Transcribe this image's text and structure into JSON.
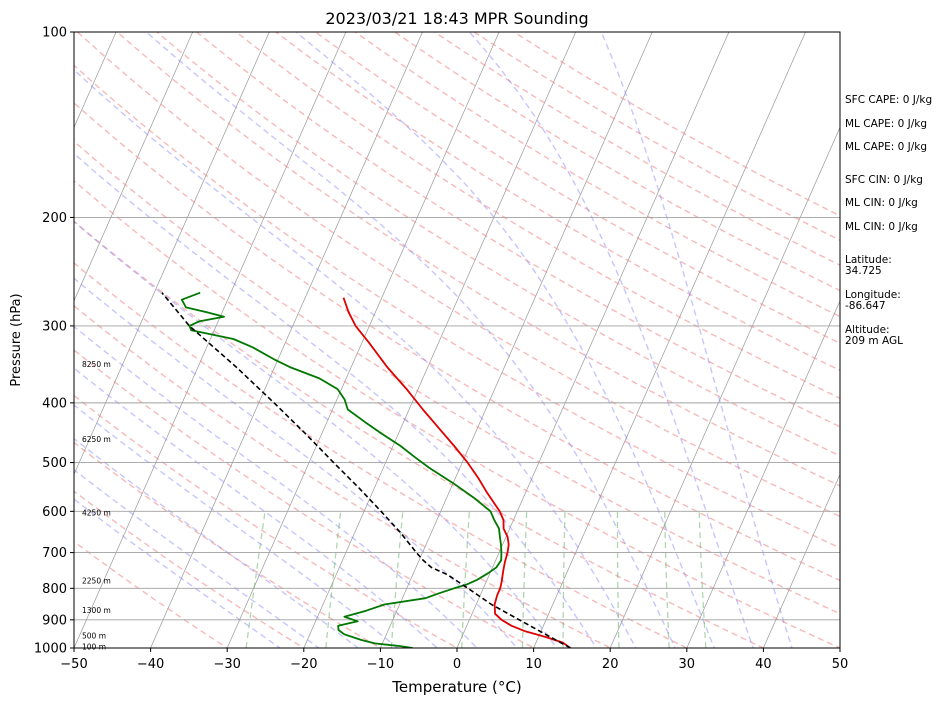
{
  "chart_data": {
    "type": "skew-t",
    "title": "2023/03/21 18:43 MPR Sounding",
    "xlabel": "Temperature (°C)",
    "ylabel": "Pressure (hPa)",
    "xlim": [
      -50,
      50
    ],
    "ylim": [
      1000,
      100
    ],
    "x_ticks": [
      "−50",
      "−40",
      "−30",
      "−20",
      "−10",
      "0",
      "10",
      "20",
      "30",
      "40",
      "50"
    ],
    "y_ticks": [
      {
        "p": 100,
        "label": "100"
      },
      {
        "p": 200,
        "label": "200"
      },
      {
        "p": 300,
        "label": "300"
      },
      {
        "p": 400,
        "label": "400"
      },
      {
        "p": 500,
        "label": "500"
      },
      {
        "p": 600,
        "label": "600"
      },
      {
        "p": 700,
        "label": "700"
      },
      {
        "p": 800,
        "label": "800"
      },
      {
        "p": 900,
        "label": "900"
      },
      {
        "p": 1000,
        "label": "1000"
      }
    ],
    "height_labels": [
      {
        "p": 994,
        "label": "100 m"
      },
      {
        "p": 955,
        "label": "500 m"
      },
      {
        "p": 867,
        "label": "1300 m"
      },
      {
        "p": 777,
        "label": "2250 m"
      },
      {
        "p": 603,
        "label": "4250 m"
      },
      {
        "p": 458,
        "label": "6250 m"
      },
      {
        "p": 346,
        "label": "8250 m"
      }
    ],
    "series": [
      {
        "name": "Temperature",
        "color": "#e00000",
        "points": [
          [
            1000,
            14.8
          ],
          [
            980,
            13.5
          ],
          [
            960,
            11.0
          ],
          [
            940,
            8.0
          ],
          [
            920,
            5.8
          ],
          [
            900,
            4.2
          ],
          [
            880,
            3.0
          ],
          [
            850,
            2.4
          ],
          [
            820,
            2.2
          ],
          [
            800,
            2.2
          ],
          [
            780,
            2.0
          ],
          [
            750,
            1.6
          ],
          [
            725,
            1.3
          ],
          [
            700,
            1.1
          ],
          [
            680,
            0.8
          ],
          [
            660,
            0.2
          ],
          [
            640,
            -0.8
          ],
          [
            620,
            -1.3
          ],
          [
            600,
            -2.3
          ],
          [
            560,
            -5.0
          ],
          [
            530,
            -7.0
          ],
          [
            500,
            -9.3
          ],
          [
            470,
            -12.0
          ],
          [
            440,
            -15.0
          ],
          [
            410,
            -18.2
          ],
          [
            380,
            -21.5
          ],
          [
            350,
            -25.3
          ],
          [
            320,
            -29.0
          ],
          [
            300,
            -31.8
          ],
          [
            285,
            -33.5
          ],
          [
            270,
            -35.0
          ]
        ]
      },
      {
        "name": "Dewpoint",
        "color": "#007800",
        "points": [
          [
            1000,
            -5.8
          ],
          [
            993,
            -7.5
          ],
          [
            983,
            -11.0
          ],
          [
            970,
            -13.0
          ],
          [
            950,
            -15.5
          ],
          [
            935,
            -16.5
          ],
          [
            920,
            -16.8
          ],
          [
            905,
            -14.5
          ],
          [
            890,
            -16.5
          ],
          [
            870,
            -14.0
          ],
          [
            850,
            -12.0
          ],
          [
            830,
            -7.0
          ],
          [
            815,
            -5.5
          ],
          [
            800,
            -3.8
          ],
          [
            790,
            -2.5
          ],
          [
            775,
            -1.3
          ],
          [
            755,
            -0.2
          ],
          [
            740,
            0.5
          ],
          [
            720,
            0.7
          ],
          [
            700,
            0.3
          ],
          [
            680,
            -0.2
          ],
          [
            660,
            -0.8
          ],
          [
            640,
            -1.4
          ],
          [
            620,
            -2.5
          ],
          [
            600,
            -3.5
          ],
          [
            570,
            -6.5
          ],
          [
            540,
            -10.0
          ],
          [
            510,
            -14.0
          ],
          [
            490,
            -16.5
          ],
          [
            470,
            -19.0
          ],
          [
            450,
            -22.0
          ],
          [
            430,
            -25.0
          ],
          [
            410,
            -28.0
          ],
          [
            395,
            -29.0
          ],
          [
            380,
            -30.5
          ],
          [
            365,
            -33.5
          ],
          [
            350,
            -38.0
          ],
          [
            340,
            -40.5
          ],
          [
            325,
            -44.0
          ],
          [
            315,
            -47.0
          ],
          [
            305,
            -53.0
          ],
          [
            300,
            -53.5
          ],
          [
            295,
            -52.5
          ],
          [
            290,
            -49.5
          ],
          [
            285,
            -52.0
          ],
          [
            280,
            -55.0
          ],
          [
            272,
            -56.0
          ],
          [
            265,
            -54.0
          ]
        ]
      },
      {
        "name": "Parcel",
        "color": "#000000",
        "dashed": true,
        "points": [
          [
            1000,
            14.8
          ],
          [
            900,
            6.5
          ],
          [
            850,
            2.0
          ],
          [
            800,
            -2.0
          ],
          [
            760,
            -5.5
          ],
          [
            740,
            -8.0
          ],
          [
            720,
            -9.5
          ],
          [
            700,
            -10.8
          ],
          [
            650,
            -14.0
          ],
          [
            600,
            -17.8
          ],
          [
            550,
            -22.0
          ],
          [
            500,
            -26.8
          ],
          [
            450,
            -32.0
          ],
          [
            400,
            -38.0
          ],
          [
            350,
            -45.0
          ],
          [
            300,
            -53.5
          ],
          [
            265,
            -59.0
          ]
        ]
      }
    ],
    "background_lines": [
      "isotherms",
      "dry adiabats",
      "moist adiabats",
      "mixing ratio"
    ],
    "grid": true
  },
  "stats": [
    {
      "label": "SFC CAPE:",
      "value": "0 J/kg"
    },
    {
      "label": "ML CAPE:",
      "value": "0 J/kg"
    },
    {
      "label": "ML CAPE:",
      "value": "0 J/kg"
    },
    {
      "label": "SFC CIN:",
      "value": "0 J/kg"
    },
    {
      "label": "ML CIN:",
      "value": "0 J/kg"
    },
    {
      "label": "ML CIN:",
      "value": "0 J/kg"
    }
  ],
  "location": {
    "lat_label": "Latitude:",
    "lat_value": "34.725",
    "lon_label": "Longitude:",
    "lon_value": "-86.647",
    "alt_label": "Altitude:",
    "alt_value": "209 m AGL"
  },
  "colors": {
    "dry_adiabat": "#f08080",
    "moist_adiabat": "#8080ff",
    "mixing_ratio": "#60b060",
    "isotherm": "#808080",
    "isobar": "#a0a0a0"
  }
}
